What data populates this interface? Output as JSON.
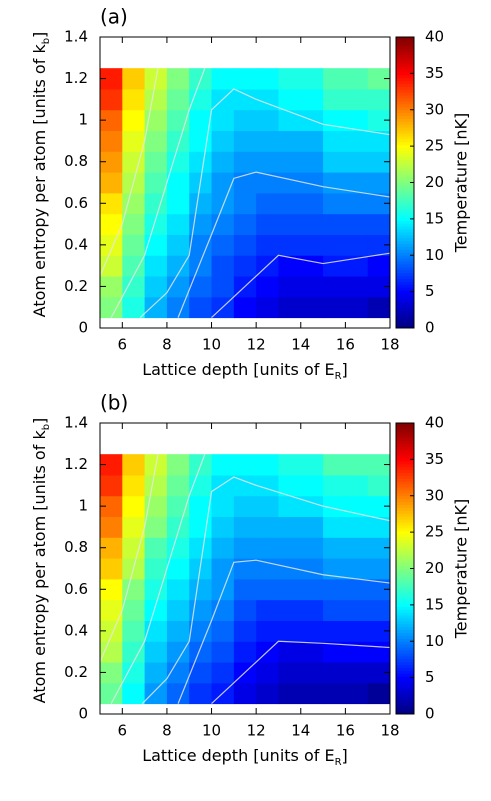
{
  "chart_data": [
    {
      "type": "heatmap",
      "title": "(a)",
      "xlabel": [
        "Lattice depth [units of E",
        "R",
        "]"
      ],
      "ylabel": [
        "Atom entropy per atom [units of k",
        "b",
        "]"
      ],
      "zlabel": "Temperature [nK]",
      "colormap": "jet",
      "xlim": [
        5,
        18
      ],
      "xticks": [
        6,
        8,
        10,
        12,
        14,
        16,
        18
      ],
      "ylim": [
        0,
        1.4
      ],
      "yticks": [
        0,
        0.2,
        0.4,
        0.6,
        0.8,
        1,
        1.2,
        1.4
      ],
      "zlim": [
        0,
        40
      ],
      "zticks": [
        0,
        5,
        10,
        15,
        20,
        25,
        30,
        35,
        40
      ],
      "x_edges": [
        5,
        6,
        7,
        8,
        9,
        10,
        11,
        12,
        13,
        15,
        17,
        18
      ],
      "y_edges": [
        0.05,
        0.15,
        0.25,
        0.35,
        0.45,
        0.55,
        0.65,
        0.75,
        0.85,
        0.95,
        1.05,
        1.15,
        1.25
      ],
      "values": [
        [
          20,
          16,
          12,
          10,
          8,
          7,
          5,
          4,
          3,
          3,
          2
        ],
        [
          21,
          17,
          13,
          11,
          9,
          8,
          6,
          5,
          4,
          4,
          4
        ],
        [
          23,
          18,
          14,
          12,
          10,
          8,
          7,
          6,
          5,
          6,
          5
        ],
        [
          24,
          19,
          15,
          13,
          10,
          9,
          8,
          7,
          7,
          7,
          7
        ],
        [
          25,
          20,
          16,
          14,
          11,
          10,
          9,
          8,
          8,
          8,
          8
        ],
        [
          26,
          21,
          17,
          15,
          12,
          11,
          10,
          9,
          9,
          10,
          10
        ],
        [
          28,
          22,
          18,
          15,
          13,
          11,
          10,
          10,
          10,
          11,
          11
        ],
        [
          29,
          23,
          19,
          16,
          14,
          12,
          11,
          11,
          11,
          13,
          13
        ],
        [
          30,
          24,
          20,
          17,
          15,
          13,
          12,
          12,
          12,
          14,
          14
        ],
        [
          31,
          25,
          21,
          18,
          15,
          14,
          13,
          13,
          14,
          15,
          16
        ],
        [
          33,
          26,
          22,
          19,
          16,
          14,
          14,
          14,
          15,
          17,
          17
        ],
        [
          34,
          27,
          23,
          20,
          17,
          15,
          15,
          15,
          16,
          18,
          19
        ]
      ],
      "contours": [
        {
          "x": [
            5,
            6,
            7,
            7.6
          ],
          "y": [
            0.25,
            0.5,
            0.9,
            1.25
          ]
        },
        {
          "x": [
            5.5,
            7,
            8,
            9,
            9.7
          ],
          "y": [
            0.05,
            0.35,
            0.7,
            1.05,
            1.25
          ]
        },
        {
          "x": [
            6.8,
            8,
            9,
            10,
            11,
            12,
            15,
            18
          ],
          "y": [
            0.05,
            0.17,
            0.35,
            1.05,
            1.15,
            1.1,
            0.98,
            0.93
          ]
        },
        {
          "x": [
            8.5,
            10,
            11,
            12,
            15,
            18
          ],
          "y": [
            0.05,
            0.45,
            0.72,
            0.75,
            0.68,
            0.63
          ]
        },
        {
          "x": [
            10,
            11,
            12,
            13,
            15,
            18
          ],
          "y": [
            0.05,
            0.15,
            0.25,
            0.35,
            0.31,
            0.36
          ]
        }
      ]
    },
    {
      "type": "heatmap",
      "title": "(b)",
      "xlabel": [
        "Lattice depth [units of E",
        "R",
        "]"
      ],
      "ylabel": [
        "Atom entropy per atom [units of k",
        "b",
        "]"
      ],
      "zlabel": "Temperature [nK]",
      "colormap": "jet",
      "xlim": [
        5,
        18
      ],
      "xticks": [
        6,
        8,
        10,
        12,
        14,
        16,
        18
      ],
      "ylim": [
        0,
        1.4
      ],
      "yticks": [
        0,
        0.2,
        0.4,
        0.6,
        0.8,
        1,
        1.2,
        1.4
      ],
      "zlim": [
        0,
        40
      ],
      "zticks": [
        0,
        5,
        10,
        15,
        20,
        25,
        30,
        35,
        40
      ],
      "x_edges": [
        5,
        6,
        7,
        8,
        9,
        10,
        11,
        12,
        13,
        15,
        17,
        18
      ],
      "y_edges": [
        0.05,
        0.15,
        0.25,
        0.35,
        0.45,
        0.55,
        0.65,
        0.75,
        0.85,
        0.95,
        1.05,
        1.15,
        1.25
      ],
      "values": [
        [
          19,
          15,
          11,
          9,
          7,
          6,
          4,
          3,
          2,
          2,
          1
        ],
        [
          20,
          16,
          12,
          10,
          8,
          7,
          5,
          4,
          3,
          3,
          3
        ],
        [
          22,
          17,
          13,
          11,
          9,
          8,
          6,
          5,
          4,
          5,
          5
        ],
        [
          23,
          18,
          14,
          12,
          10,
          9,
          7,
          6,
          6,
          6,
          6
        ],
        [
          24,
          19,
          15,
          13,
          11,
          10,
          8,
          7,
          7,
          8,
          8
        ],
        [
          25,
          20,
          16,
          14,
          12,
          11,
          9,
          9,
          9,
          9,
          9
        ],
        [
          27,
          22,
          17,
          15,
          13,
          11,
          10,
          10,
          10,
          11,
          11
        ],
        [
          28,
          23,
          18,
          16,
          14,
          12,
          11,
          11,
          11,
          12,
          12
        ],
        [
          30,
          24,
          20,
          17,
          15,
          13,
          12,
          12,
          12,
          14,
          14
        ],
        [
          31,
          25,
          21,
          18,
          15,
          14,
          13,
          13,
          14,
          15,
          15
        ],
        [
          33,
          26,
          22,
          19,
          16,
          14,
          14,
          14,
          15,
          16,
          17
        ],
        [
          34,
          27,
          23,
          20,
          17,
          15,
          15,
          15,
          16,
          18,
          18
        ]
      ],
      "contours": [
        {
          "x": [
            5,
            6,
            7,
            7.6
          ],
          "y": [
            0.25,
            0.5,
            0.9,
            1.25
          ]
        },
        {
          "x": [
            5.5,
            7,
            8,
            9,
            9.7
          ],
          "y": [
            0.05,
            0.35,
            0.7,
            1.05,
            1.25
          ]
        },
        {
          "x": [
            6.9,
            8,
            9,
            10,
            11,
            12,
            15,
            18
          ],
          "y": [
            0.05,
            0.17,
            0.35,
            1.07,
            1.14,
            1.1,
            1.0,
            0.93
          ]
        },
        {
          "x": [
            8.5,
            10,
            11,
            12,
            15,
            18
          ],
          "y": [
            0.05,
            0.45,
            0.73,
            0.74,
            0.67,
            0.63
          ]
        },
        {
          "x": [
            10,
            11,
            12,
            13,
            15,
            18
          ],
          "y": [
            0.05,
            0.15,
            0.25,
            0.35,
            0.34,
            0.32
          ]
        }
      ]
    }
  ]
}
